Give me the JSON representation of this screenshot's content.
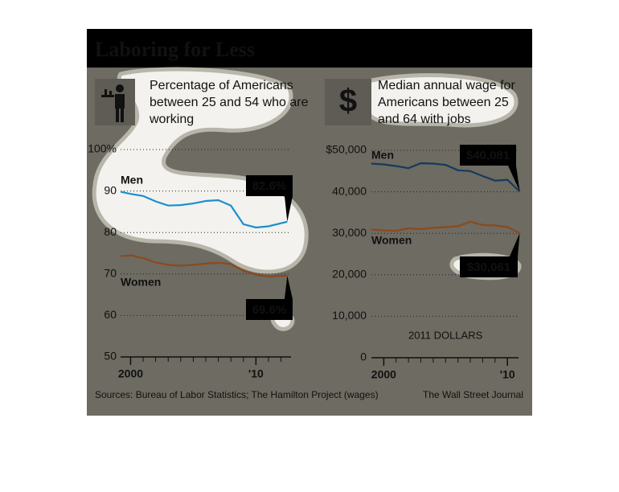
{
  "header": {
    "title": "Laboring for Less"
  },
  "chart_data": [
    {
      "type": "line",
      "title": "Percentage of Americans between 25 and 54 who are working",
      "x": [
        1999.2,
        2000,
        2001,
        2002,
        2003,
        2004,
        2005,
        2006,
        2007,
        2008,
        2009,
        2010,
        2011,
        2012.5
      ],
      "series": [
        {
          "name": "Men",
          "color": "#1a8fd0",
          "values": [
            89.8,
            89.3,
            88.8,
            87.5,
            86.5,
            86.6,
            87.0,
            87.6,
            87.8,
            86.5,
            82.0,
            81.2,
            81.5,
            82.6
          ],
          "value_labels": [
            null,
            null,
            null,
            null,
            null,
            null,
            null,
            null,
            null,
            null,
            null,
            null,
            null,
            "82.6%"
          ]
        },
        {
          "name": "Women",
          "color": "#8a4a1e",
          "values": [
            74.3,
            74.5,
            73.8,
            72.8,
            72.2,
            72.0,
            72.2,
            72.5,
            72.7,
            72.4,
            70.8,
            69.8,
            69.4,
            69.6
          ],
          "value_labels": [
            null,
            null,
            null,
            null,
            null,
            null,
            null,
            null,
            null,
            null,
            null,
            null,
            null,
            "69.6%"
          ]
        }
      ],
      "xlim": [
        1999.2,
        2012.8
      ],
      "xticks": [
        2000,
        {
          "value": 2010,
          "label": "'10"
        }
      ],
      "x_minor_ticks": [
        2001,
        2002,
        2003,
        2004,
        2005,
        2006,
        2007,
        2008,
        2009,
        2011,
        2012
      ],
      "ylim": [
        50,
        100
      ],
      "yticks": [
        {
          "value": 100,
          "label": "100%"
        },
        90,
        80,
        70,
        60,
        50
      ],
      "grid": true
    },
    {
      "type": "line",
      "title": "Median annual wage for Americans between 25 and 64 with jobs",
      "icon_text": "$",
      "annotation": "2011 DOLLARS",
      "x": [
        1999,
        2000,
        2001,
        2002,
        2003,
        2004,
        2005,
        2006,
        2007,
        2008,
        2009,
        2010,
        2011
      ],
      "series": [
        {
          "name": "Men",
          "color": "#173a5c",
          "values": [
            46800,
            46600,
            46200,
            45700,
            46900,
            46800,
            46500,
            45200,
            45000,
            43800,
            42700,
            42900,
            40081
          ],
          "value_labels": [
            null,
            null,
            null,
            null,
            null,
            null,
            null,
            null,
            null,
            null,
            null,
            null,
            "$40,081"
          ]
        },
        {
          "name": "Women",
          "color": "#8a4a1e",
          "values": [
            30900,
            30700,
            30600,
            31200,
            31000,
            31300,
            31500,
            31700,
            32800,
            32000,
            31900,
            31500,
            30061
          ],
          "value_labels": [
            null,
            null,
            null,
            null,
            null,
            null,
            null,
            null,
            null,
            null,
            null,
            null,
            "$30,061"
          ]
        }
      ],
      "xlim": [
        1999,
        2010.9
      ],
      "xticks": [
        2000,
        {
          "value": 2010,
          "label": "'10"
        }
      ],
      "x_minor_ticks": [
        2001,
        2002,
        2003,
        2004,
        2005,
        2006,
        2007,
        2008,
        2009
      ],
      "ylim": [
        0,
        50000
      ],
      "yticks": [
        {
          "value": 50000,
          "label": "$50,000"
        },
        {
          "value": 40000,
          "label": "40,000"
        },
        {
          "value": 30000,
          "label": "30,000"
        },
        {
          "value": 20000,
          "label": "20,000"
        },
        {
          "value": 10000,
          "label": "10,000"
        },
        0
      ],
      "grid": true
    }
  ],
  "footer": {
    "source": "Sources: Bureau of Labor Statistics; The Hamilton Project (wages)",
    "credit": "The Wall Street Journal"
  }
}
